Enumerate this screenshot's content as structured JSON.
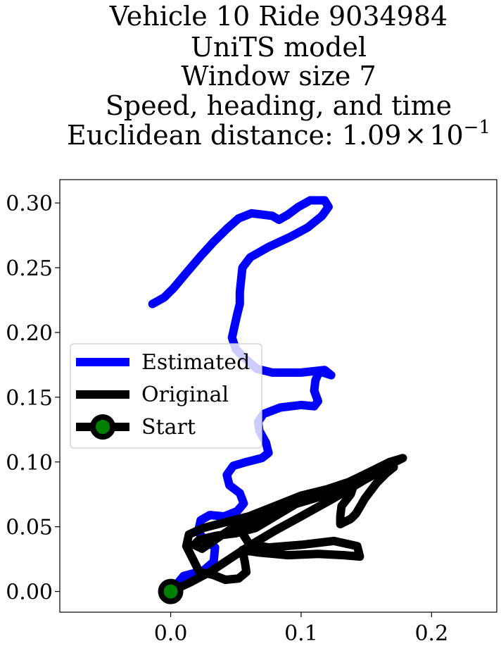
{
  "chart_data": {
    "type": "line",
    "title_lines": [
      "Vehicle 10 Ride 9034984",
      "UniTS model",
      "Window size 7",
      "Speed, heading, and time"
    ],
    "title_metric_prefix": "Euclidean distance: ",
    "title_metric_value": "1.09",
    "title_metric_times": "×",
    "title_metric_base": "10",
    "title_metric_exponent": "−1",
    "xlim": [
      -0.085,
      0.25
    ],
    "ylim": [
      -0.016,
      0.318
    ],
    "xticks": [
      0.0,
      0.1,
      0.2
    ],
    "xtick_labels": [
      "0.0",
      "0.1",
      "0.2"
    ],
    "yticks": [
      0.0,
      0.05,
      0.1,
      0.15,
      0.2,
      0.25,
      0.3
    ],
    "ytick_labels": [
      "0.00",
      "0.05",
      "0.10",
      "0.15",
      "0.20",
      "0.25",
      "0.30"
    ],
    "grid": false,
    "legend_position": "center-left",
    "series": [
      {
        "name": "Estimated",
        "color": "#0000ff",
        "points": [
          [
            0.0,
            0.0
          ],
          [
            0.01,
            0.012
          ],
          [
            0.025,
            0.016
          ],
          [
            0.033,
            0.023
          ],
          [
            0.034,
            0.034
          ],
          [
            0.026,
            0.04
          ],
          [
            0.021,
            0.046
          ],
          [
            0.023,
            0.055
          ],
          [
            0.03,
            0.059
          ],
          [
            0.041,
            0.058
          ],
          [
            0.051,
            0.062
          ],
          [
            0.056,
            0.068
          ],
          [
            0.053,
            0.076
          ],
          [
            0.045,
            0.082
          ],
          [
            0.043,
            0.09
          ],
          [
            0.048,
            0.097
          ],
          [
            0.058,
            0.1
          ],
          [
            0.07,
            0.103
          ],
          [
            0.075,
            0.107
          ],
          [
            0.073,
            0.115
          ],
          [
            0.068,
            0.124
          ],
          [
            0.067,
            0.131
          ],
          [
            0.071,
            0.137
          ],
          [
            0.084,
            0.142
          ],
          [
            0.1,
            0.144
          ],
          [
            0.11,
            0.143
          ],
          [
            0.113,
            0.147
          ],
          [
            0.11,
            0.155
          ],
          [
            0.111,
            0.163
          ],
          [
            0.114,
            0.17
          ],
          [
            0.123,
            0.167
          ],
          [
            0.118,
            0.171
          ],
          [
            0.1,
            0.169
          ],
          [
            0.078,
            0.169
          ],
          [
            0.066,
            0.172
          ],
          [
            0.057,
            0.18
          ],
          [
            0.05,
            0.187
          ],
          [
            0.047,
            0.196
          ],
          [
            0.049,
            0.205
          ],
          [
            0.051,
            0.214
          ],
          [
            0.053,
            0.222
          ],
          [
            0.053,
            0.231
          ],
          [
            0.054,
            0.241
          ],
          [
            0.055,
            0.25
          ],
          [
            0.061,
            0.258
          ],
          [
            0.075,
            0.266
          ],
          [
            0.092,
            0.274
          ],
          [
            0.105,
            0.281
          ],
          [
            0.116,
            0.29
          ],
          [
            0.121,
            0.297
          ],
          [
            0.118,
            0.302
          ],
          [
            0.107,
            0.302
          ],
          [
            0.098,
            0.297
          ],
          [
            0.09,
            0.291
          ],
          [
            0.083,
            0.287
          ],
          [
            0.078,
            0.29
          ],
          [
            0.07,
            0.291
          ],
          [
            0.062,
            0.292
          ],
          [
            0.052,
            0.288
          ],
          [
            0.043,
            0.28
          ],
          [
            0.033,
            0.27
          ],
          [
            0.023,
            0.259
          ],
          [
            0.012,
            0.246
          ],
          [
            0.002,
            0.234
          ],
          [
            -0.005,
            0.227
          ],
          [
            -0.014,
            0.222
          ]
        ]
      },
      {
        "name": "Original",
        "color": "#000000",
        "points": [
          [
            0.0,
            0.0
          ],
          [
            0.015,
            0.007
          ],
          [
            0.03,
            0.015
          ],
          [
            0.045,
            0.025
          ],
          [
            0.06,
            0.035
          ],
          [
            0.08,
            0.047
          ],
          [
            0.1,
            0.058
          ],
          [
            0.125,
            0.072
          ],
          [
            0.15,
            0.087
          ],
          [
            0.17,
            0.099
          ],
          [
            0.178,
            0.103
          ],
          [
            0.168,
            0.1
          ],
          [
            0.15,
            0.091
          ],
          [
            0.125,
            0.079
          ],
          [
            0.1,
            0.069
          ],
          [
            0.075,
            0.06
          ],
          [
            0.06,
            0.052
          ],
          [
            0.055,
            0.045
          ],
          [
            0.06,
            0.037
          ],
          [
            0.075,
            0.034
          ],
          [
            0.1,
            0.036
          ],
          [
            0.125,
            0.039
          ],
          [
            0.143,
            0.035
          ],
          [
            0.145,
            0.027
          ],
          [
            0.133,
            0.028
          ],
          [
            0.113,
            0.029
          ],
          [
            0.09,
            0.028
          ],
          [
            0.068,
            0.03
          ],
          [
            0.055,
            0.032
          ],
          [
            0.057,
            0.022
          ],
          [
            0.058,
            0.015
          ],
          [
            0.052,
            0.01
          ],
          [
            0.042,
            0.009
          ],
          [
            0.032,
            0.013
          ],
          [
            0.022,
            0.015
          ],
          [
            0.017,
            0.025
          ],
          [
            0.012,
            0.035
          ],
          [
            0.014,
            0.044
          ],
          [
            0.025,
            0.049
          ],
          [
            0.04,
            0.053
          ],
          [
            0.06,
            0.058
          ],
          [
            0.08,
            0.066
          ],
          [
            0.1,
            0.074
          ],
          [
            0.12,
            0.079
          ],
          [
            0.135,
            0.084
          ],
          [
            0.14,
            0.081
          ],
          [
            0.138,
            0.075
          ],
          [
            0.131,
            0.066
          ],
          [
            0.13,
            0.058
          ],
          [
            0.13,
            0.052
          ],
          [
            0.138,
            0.056
          ],
          [
            0.142,
            0.06
          ],
          [
            0.149,
            0.072
          ],
          [
            0.158,
            0.084
          ],
          [
            0.165,
            0.091
          ],
          [
            0.171,
            0.096
          ],
          [
            0.167,
            0.097
          ],
          [
            0.152,
            0.088
          ],
          [
            0.13,
            0.078
          ],
          [
            0.104,
            0.07
          ],
          [
            0.08,
            0.063
          ],
          [
            0.062,
            0.056
          ],
          [
            0.046,
            0.048
          ],
          [
            0.034,
            0.04
          ],
          [
            0.024,
            0.033
          ],
          [
            0.018,
            0.036
          ],
          [
            0.022,
            0.04
          ],
          [
            0.035,
            0.043
          ],
          [
            0.05,
            0.045
          ],
          [
            0.065,
            0.049
          ],
          [
            0.08,
            0.058
          ],
          [
            0.095,
            0.067
          ]
        ]
      }
    ],
    "start_point": {
      "name": "Start",
      "x": 0.0,
      "y": 0.0,
      "marker_color": "#008000",
      "edge_color": "#000000"
    },
    "legend": [
      {
        "label": "Estimated",
        "color": "#0000ff",
        "marker": false
      },
      {
        "label": "Original",
        "color": "#000000",
        "marker": false
      },
      {
        "label": "Start",
        "color": "#000000",
        "marker": true,
        "marker_color": "#008000"
      }
    ]
  }
}
